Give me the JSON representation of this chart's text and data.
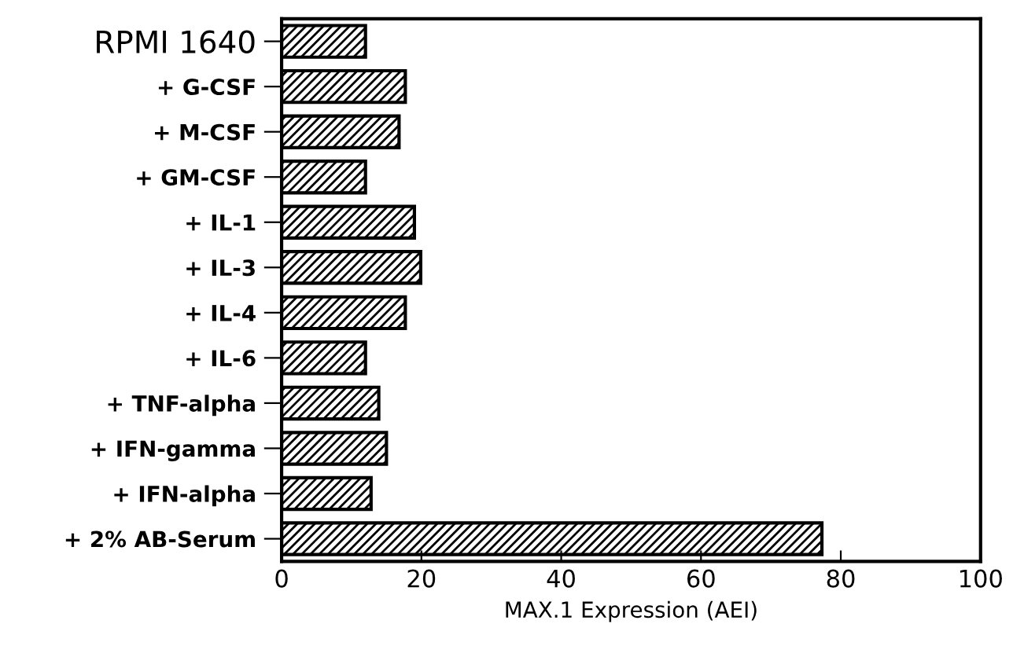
{
  "chart_data": {
    "type": "bar",
    "orientation": "horizontal",
    "xlabel": "MAX.1 Expression (AEI)",
    "categories": [
      "RPMI 1640",
      "+ G-CSF",
      "+ M-CSF",
      "+ GM-CSF",
      "+ IL-1",
      "+ IL-3",
      "+ IL-4",
      "+ IL-6",
      "+ TNF-alpha",
      "+ IFN-gamma",
      "+ IFN-alpha",
      "+ 2% AB-Serum"
    ],
    "values": [
      12,
      17.7,
      16.8,
      12,
      19,
      19.9,
      17.7,
      12,
      13.9,
      15,
      12.8,
      77.3
    ],
    "color": "#000000",
    "xlim": [
      0,
      100
    ],
    "xticks": [
      0,
      20,
      40,
      60,
      80,
      100
    ],
    "grid": false
  }
}
